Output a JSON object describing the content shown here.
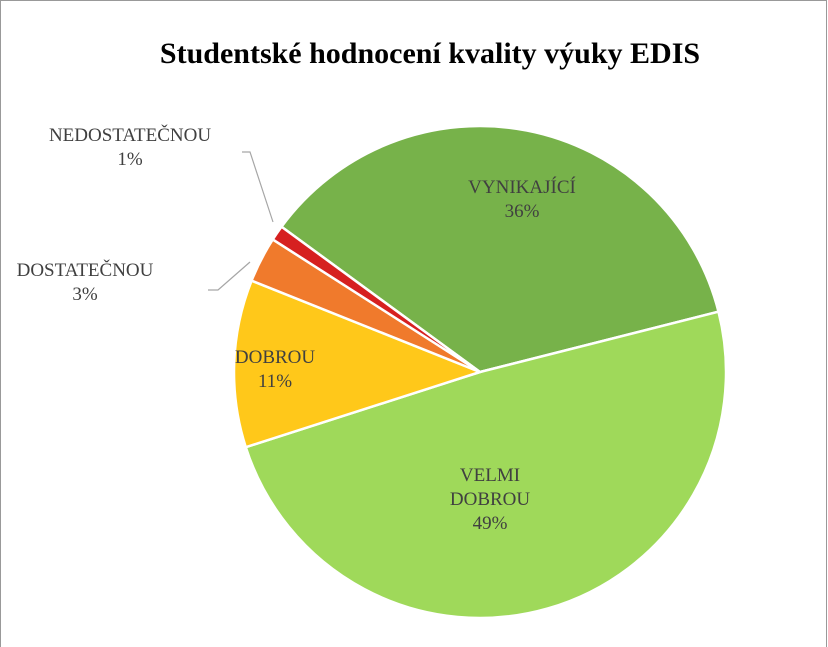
{
  "chart_data": {
    "type": "pie",
    "title": "Studentské hodnocení kvality výuky EDIS",
    "categories": [
      "VYNIKAJÍCÍ",
      "VELMI DOBROU",
      "DOBROU",
      "DOSTATEČNOU",
      "NEDOSTATEČNOU"
    ],
    "values": [
      36,
      49,
      11,
      3,
      1
    ],
    "value_labels": [
      "36%",
      "49%",
      "11%",
      "3%",
      "1%"
    ],
    "colors": [
      "#77b24a",
      "#9fd95a",
      "#ffc81a",
      "#f07a2c",
      "#d62020"
    ]
  }
}
